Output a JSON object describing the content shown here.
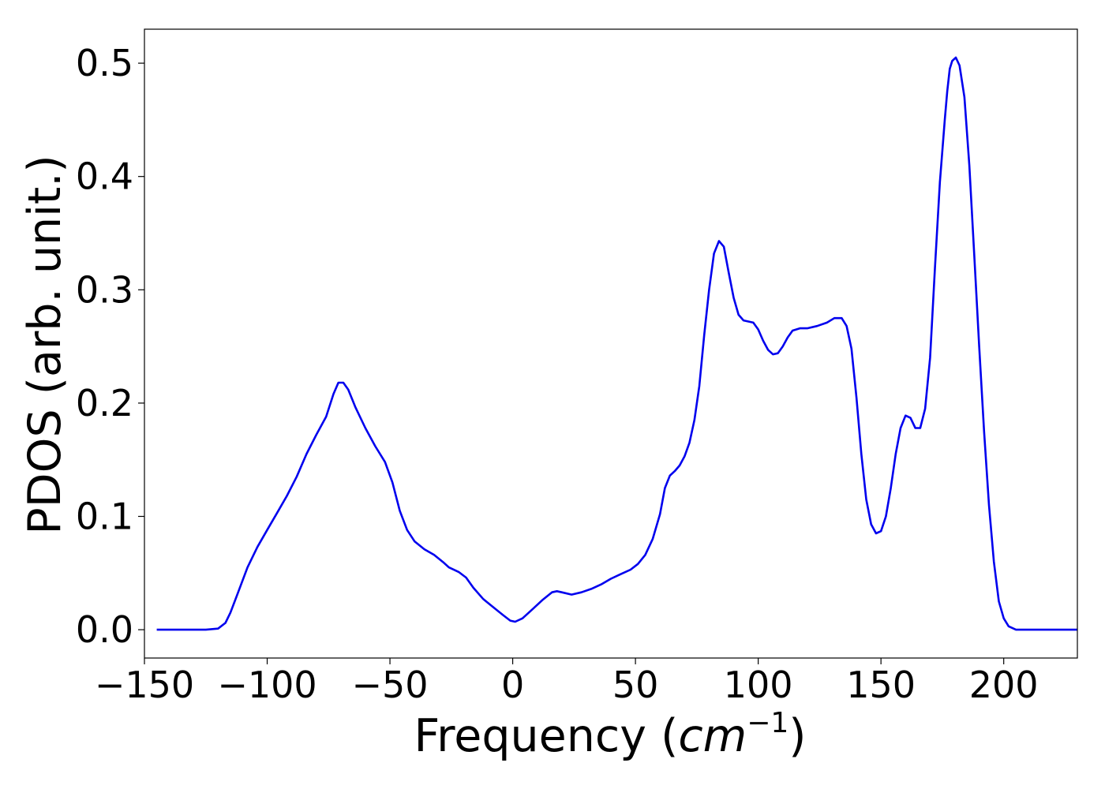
{
  "chart_data": {
    "type": "line",
    "xlabel": {
      "prefix": "Frequency (",
      "math": "cm",
      "exponent": "−1",
      "suffix": ")"
    },
    "ylabel": "PDOS (arb. unit.)",
    "xlim": [
      -150,
      230
    ],
    "ylim": [
      -0.025,
      0.53
    ],
    "xticks": [
      -150,
      -100,
      -50,
      0,
      50,
      100,
      150,
      200
    ],
    "xtick_labels": [
      "−150",
      "−100",
      "−50",
      "0",
      "50",
      "100",
      "150",
      "200"
    ],
    "yticks": [
      0.0,
      0.1,
      0.2,
      0.3,
      0.4,
      0.5
    ],
    "ytick_labels": [
      "0.0",
      "0.1",
      "0.2",
      "0.3",
      "0.4",
      "0.5"
    ],
    "grid": false,
    "series": [
      {
        "color": "#0000ee",
        "points": [
          [
            -145,
            0.0
          ],
          [
            -125,
            0.0
          ],
          [
            -120,
            0.001
          ],
          [
            -117,
            0.006
          ],
          [
            -115,
            0.015
          ],
          [
            -112,
            0.032
          ],
          [
            -108,
            0.055
          ],
          [
            -104,
            0.073
          ],
          [
            -100,
            0.088
          ],
          [
            -96,
            0.103
          ],
          [
            -92,
            0.118
          ],
          [
            -88,
            0.135
          ],
          [
            -84,
            0.155
          ],
          [
            -80,
            0.172
          ],
          [
            -76,
            0.188
          ],
          [
            -73,
            0.208
          ],
          [
            -71,
            0.218
          ],
          [
            -69,
            0.218
          ],
          [
            -67,
            0.212
          ],
          [
            -64,
            0.196
          ],
          [
            -60,
            0.178
          ],
          [
            -56,
            0.162
          ],
          [
            -52,
            0.148
          ],
          [
            -49,
            0.13
          ],
          [
            -46,
            0.105
          ],
          [
            -43,
            0.088
          ],
          [
            -40,
            0.078
          ],
          [
            -36,
            0.071
          ],
          [
            -32,
            0.066
          ],
          [
            -28,
            0.059
          ],
          [
            -26,
            0.055
          ],
          [
            -22,
            0.051
          ],
          [
            -19,
            0.046
          ],
          [
            -16,
            0.037
          ],
          [
            -12,
            0.027
          ],
          [
            -8,
            0.02
          ],
          [
            -4,
            0.013
          ],
          [
            -1,
            0.008
          ],
          [
            1,
            0.007
          ],
          [
            4,
            0.01
          ],
          [
            8,
            0.018
          ],
          [
            12,
            0.026
          ],
          [
            16,
            0.033
          ],
          [
            18,
            0.034
          ],
          [
            20,
            0.033
          ],
          [
            24,
            0.031
          ],
          [
            28,
            0.033
          ],
          [
            32,
            0.036
          ],
          [
            36,
            0.04
          ],
          [
            40,
            0.045
          ],
          [
            44,
            0.049
          ],
          [
            48,
            0.053
          ],
          [
            51,
            0.058
          ],
          [
            54,
            0.066
          ],
          [
            57,
            0.08
          ],
          [
            60,
            0.102
          ],
          [
            62,
            0.125
          ],
          [
            64,
            0.136
          ],
          [
            66,
            0.14
          ],
          [
            68,
            0.145
          ],
          [
            70,
            0.153
          ],
          [
            72,
            0.165
          ],
          [
            74,
            0.185
          ],
          [
            76,
            0.215
          ],
          [
            78,
            0.26
          ],
          [
            80,
            0.3
          ],
          [
            82,
            0.332
          ],
          [
            84,
            0.343
          ],
          [
            86,
            0.338
          ],
          [
            88,
            0.315
          ],
          [
            90,
            0.293
          ],
          [
            92,
            0.278
          ],
          [
            94,
            0.273
          ],
          [
            96,
            0.272
          ],
          [
            98,
            0.271
          ],
          [
            100,
            0.265
          ],
          [
            102,
            0.255
          ],
          [
            104,
            0.247
          ],
          [
            106,
            0.243
          ],
          [
            108,
            0.244
          ],
          [
            110,
            0.25
          ],
          [
            112,
            0.258
          ],
          [
            114,
            0.264
          ],
          [
            117,
            0.266
          ],
          [
            120,
            0.266
          ],
          [
            124,
            0.268
          ],
          [
            128,
            0.271
          ],
          [
            131,
            0.275
          ],
          [
            134,
            0.275
          ],
          [
            136,
            0.268
          ],
          [
            138,
            0.248
          ],
          [
            140,
            0.205
          ],
          [
            142,
            0.155
          ],
          [
            144,
            0.115
          ],
          [
            146,
            0.093
          ],
          [
            148,
            0.085
          ],
          [
            150,
            0.087
          ],
          [
            152,
            0.1
          ],
          [
            154,
            0.125
          ],
          [
            156,
            0.155
          ],
          [
            158,
            0.178
          ],
          [
            160,
            0.189
          ],
          [
            162,
            0.187
          ],
          [
            164,
            0.178
          ],
          [
            166,
            0.178
          ],
          [
            168,
            0.195
          ],
          [
            170,
            0.24
          ],
          [
            172,
            0.32
          ],
          [
            174,
            0.395
          ],
          [
            176,
            0.45
          ],
          [
            177,
            0.475
          ],
          [
            178,
            0.495
          ],
          [
            179,
            0.502
          ],
          [
            180.5,
            0.505
          ],
          [
            182,
            0.498
          ],
          [
            184,
            0.47
          ],
          [
            186,
            0.41
          ],
          [
            188,
            0.33
          ],
          [
            190,
            0.25
          ],
          [
            192,
            0.175
          ],
          [
            194,
            0.11
          ],
          [
            196,
            0.06
          ],
          [
            198,
            0.025
          ],
          [
            200,
            0.01
          ],
          [
            202,
            0.003
          ],
          [
            205,
            0.0
          ],
          [
            230,
            0.0
          ]
        ]
      }
    ]
  }
}
